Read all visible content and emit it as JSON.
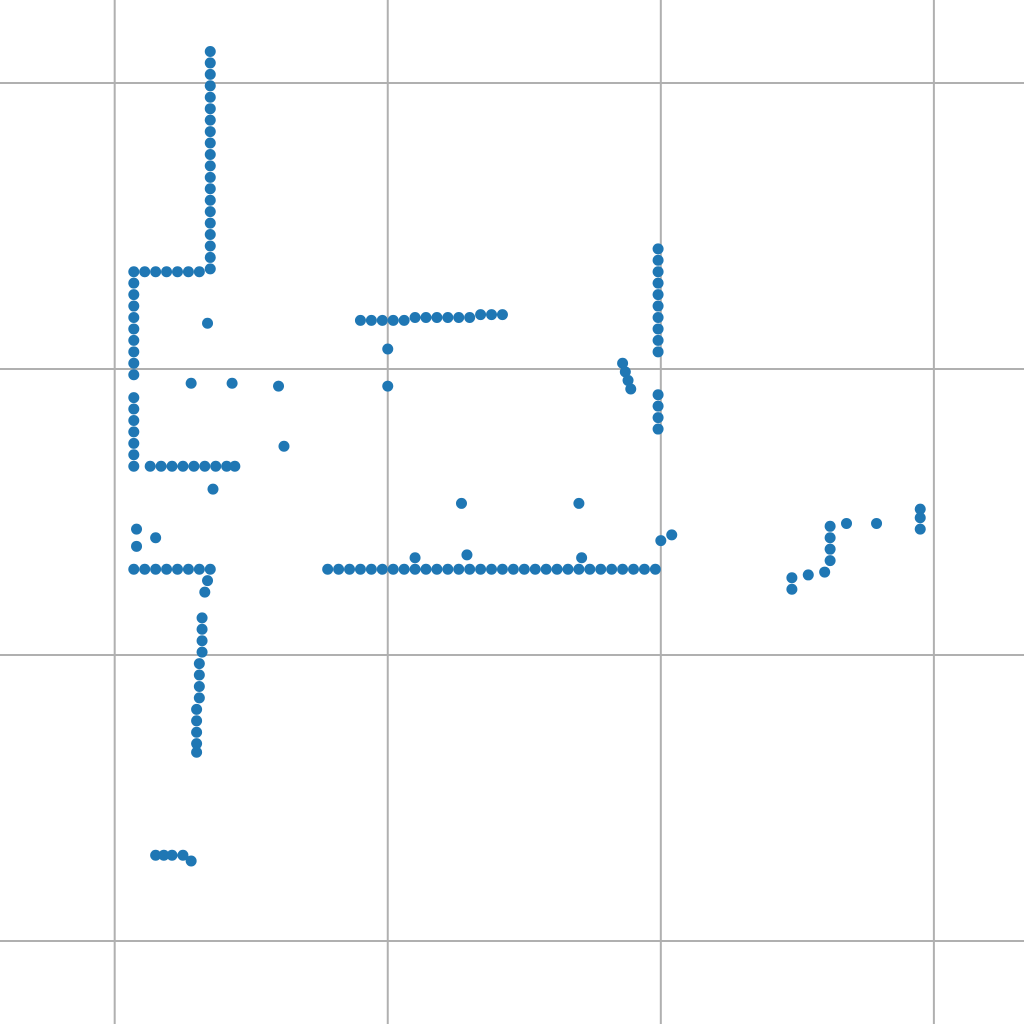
{
  "chart_data": {
    "type": "scatter",
    "color": "#1f77b4",
    "grid": true,
    "xlim": [
      -0.42,
      3.33
    ],
    "ylim": [
      -0.29,
      3.29
    ],
    "xticks": [
      0,
      1,
      2,
      3
    ],
    "yticks": [
      0,
      1,
      2,
      3
    ],
    "x": [
      0.35,
      0.35,
      0.35,
      0.35,
      0.35,
      0.35,
      0.35,
      0.35,
      0.35,
      0.35,
      0.35,
      0.35,
      0.35,
      0.35,
      0.35,
      0.35,
      0.35,
      0.35,
      0.35,
      0.35,
      0.07,
      0.11,
      0.15,
      0.19,
      0.23,
      0.27,
      0.31,
      0.07,
      0.07,
      0.07,
      0.07,
      0.07,
      0.07,
      0.07,
      0.07,
      0.07,
      0.07,
      0.07,
      0.07,
      0.07,
      0.07,
      0.07,
      0.07,
      0.13,
      0.17,
      0.21,
      0.25,
      0.29,
      0.33,
      0.37,
      0.41,
      0.44,
      0.34,
      0.28,
      0.43,
      0.6,
      0.62,
      0.36,
      0.08,
      0.08,
      0.15,
      0.07,
      0.11,
      0.15,
      0.19,
      0.23,
      0.27,
      0.31,
      0.35,
      0.34,
      0.33,
      0.32,
      0.32,
      0.32,
      0.32,
      0.31,
      0.31,
      0.31,
      0.31,
      0.3,
      0.3,
      0.3,
      0.3,
      0.3,
      0.15,
      0.18,
      0.21,
      0.25,
      0.28,
      0.9,
      0.94,
      0.98,
      1.02,
      1.06,
      1.1,
      1.14,
      1.18,
      1.22,
      1.26,
      1.3,
      1.34,
      1.38,
      1.42,
      1.0,
      1.0,
      1.99,
      1.99,
      1.99,
      1.99,
      1.99,
      1.99,
      1.99,
      1.99,
      1.99,
      1.99,
      1.99,
      1.99,
      1.99,
      1.99,
      1.86,
      1.87,
      1.88,
      1.89,
      0.78,
      0.82,
      0.86,
      0.9,
      0.94,
      0.98,
      1.02,
      1.06,
      1.1,
      1.14,
      1.18,
      1.22,
      1.26,
      1.3,
      1.34,
      1.38,
      1.42,
      1.46,
      1.5,
      1.54,
      1.58,
      1.62,
      1.66,
      1.7,
      1.74,
      1.78,
      1.82,
      1.86,
      1.9,
      1.94,
      1.98,
      1.1,
      1.29,
      1.27,
      1.7,
      1.71,
      2.0,
      2.04,
      2.48,
      2.48,
      2.54,
      2.6,
      2.62,
      2.62,
      2.62,
      2.62,
      2.68,
      2.79,
      2.95,
      2.95,
      2.95
    ],
    "y": [
      3.11,
      3.07,
      3.03,
      2.99,
      2.95,
      2.91,
      2.87,
      2.83,
      2.79,
      2.75,
      2.71,
      2.67,
      2.63,
      2.59,
      2.55,
      2.51,
      2.47,
      2.43,
      2.39,
      2.35,
      2.34,
      2.34,
      2.34,
      2.34,
      2.34,
      2.34,
      2.34,
      2.3,
      2.26,
      2.22,
      2.18,
      2.14,
      2.1,
      2.06,
      2.02,
      1.98,
      1.9,
      1.86,
      1.82,
      1.78,
      1.74,
      1.7,
      1.66,
      1.66,
      1.66,
      1.66,
      1.66,
      1.66,
      1.66,
      1.66,
      1.66,
      1.66,
      2.16,
      1.95,
      1.95,
      1.94,
      1.73,
      1.58,
      1.44,
      1.38,
      1.41,
      1.3,
      1.3,
      1.3,
      1.3,
      1.3,
      1.3,
      1.3,
      1.3,
      1.26,
      1.22,
      1.13,
      1.09,
      1.05,
      1.01,
      0.97,
      0.93,
      0.89,
      0.85,
      0.81,
      0.77,
      0.73,
      0.69,
      0.66,
      0.3,
      0.3,
      0.3,
      0.3,
      0.28,
      2.17,
      2.17,
      2.17,
      2.17,
      2.17,
      2.18,
      2.18,
      2.18,
      2.18,
      2.18,
      2.18,
      2.19,
      2.19,
      2.19,
      2.07,
      1.94,
      2.42,
      2.38,
      2.34,
      2.3,
      2.26,
      2.22,
      2.18,
      2.14,
      2.1,
      2.06,
      1.91,
      1.87,
      1.83,
      1.79,
      2.02,
      1.99,
      1.96,
      1.93,
      1.3,
      1.3,
      1.3,
      1.3,
      1.3,
      1.3,
      1.3,
      1.3,
      1.3,
      1.3,
      1.3,
      1.3,
      1.3,
      1.3,
      1.3,
      1.3,
      1.3,
      1.3,
      1.3,
      1.3,
      1.3,
      1.3,
      1.3,
      1.3,
      1.3,
      1.3,
      1.3,
      1.3,
      1.3,
      1.3,
      1.3,
      1.34,
      1.35,
      1.53,
      1.53,
      1.34,
      1.4,
      1.42,
      1.23,
      1.27,
      1.28,
      1.29,
      1.45,
      1.41,
      1.37,
      1.33,
      1.46,
      1.46,
      1.51,
      1.48,
      1.44
    ]
  }
}
